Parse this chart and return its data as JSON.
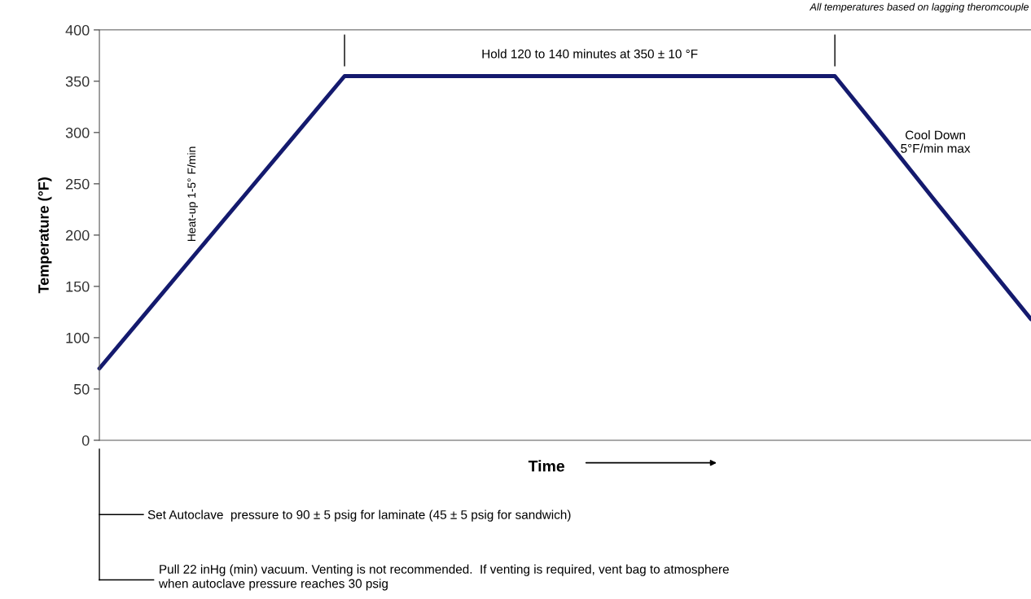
{
  "chart_data": {
    "type": "line",
    "xlabel": "Time",
    "ylabel": "Temperature (°F)",
    "categories": [
      null,
      null,
      null,
      null,
      null,
      null,
      null,
      null,
      null,
      null,
      null,
      null,
      null,
      null,
      null,
      null,
      null,
      null,
      null,
      null
    ],
    "series": [
      {
        "color": "#141a6e",
        "values": [
          70,
          127,
          184,
          241,
          298,
          355,
          355,
          355,
          355,
          355,
          355,
          355,
          355,
          355,
          355,
          355,
          296,
          236,
          177,
          118
        ]
      }
    ],
    "ylim": [
      0,
      400
    ],
    "yticks": [
      0,
      50,
      100,
      150,
      200,
      250,
      300,
      350,
      400
    ],
    "grid": false,
    "legend": false,
    "marker": "none",
    "line_style": "solid",
    "annotations": [
      "Hold 120 to 140 minutes at 350 ± 10 °F",
      "Heat-up 1-5° F/min",
      "Cool Down\n5°F/min max",
      "All temperatures based on lagging theromcouple",
      "Set Autoclave  pressure to 90 ± 5 psig for laminate (45 ± 5 psig for sandwich)",
      "Pull 22 inHg (min) vacuum. Venting is not recommended.  If venting is required, vent bag to atmosphere\nwhen autoclave pressure reaches 30 psig"
    ]
  }
}
